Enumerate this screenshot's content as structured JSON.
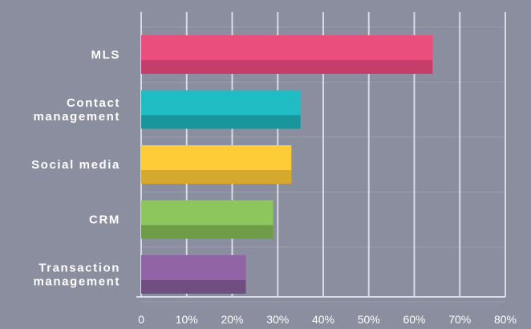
{
  "chart_data": {
    "type": "bar",
    "orientation": "horizontal",
    "categories": [
      [
        "MLS"
      ],
      [
        "Contact",
        "management"
      ],
      [
        "Social media"
      ],
      [
        "CRM"
      ],
      [
        "Transaction",
        "management"
      ]
    ],
    "values": [
      64,
      35,
      33,
      29,
      23
    ],
    "colors": [
      "#e94e7d",
      "#1fbcc4",
      "#fecc37",
      "#8ec65e",
      "#9165a5"
    ],
    "shade_colors": [
      "#c43e69",
      "#18969c",
      "#d4a92d",
      "#6f9c48",
      "#6f4f81"
    ],
    "xlim": [
      0,
      80
    ],
    "x_ticks": [
      "0",
      "10%",
      "20%",
      "30%",
      "40%",
      "50%",
      "60%",
      "70%",
      "80%"
    ],
    "grid": true,
    "title": "",
    "xlabel": "",
    "ylabel": ""
  }
}
